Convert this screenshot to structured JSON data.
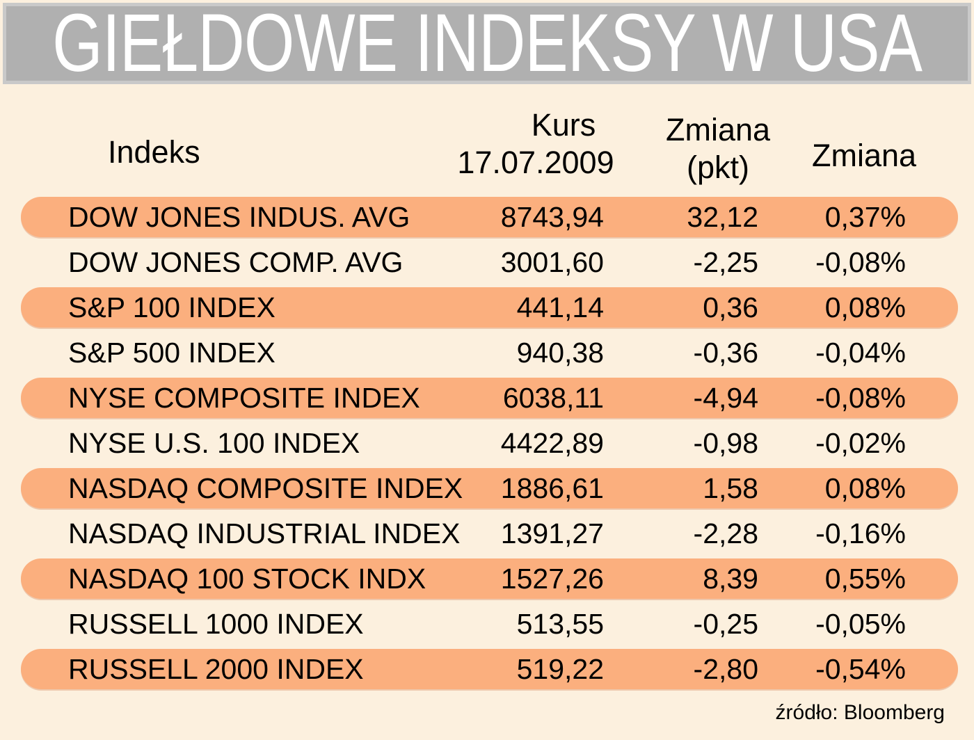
{
  "title": "GIEŁDOWE INDEKSY W USA",
  "source_note": "źródło: Bloomberg",
  "colors": {
    "background_cream": "#FCF0DE",
    "highlight_orange": "#FBAF7E",
    "title_bar_gray": "#B0B0B0",
    "title_bar_border_gray": "#C9C9C9",
    "title_text_white": "#FFFFFF",
    "body_text_black": "#000000"
  },
  "table": {
    "header": {
      "indeks": "Indeks",
      "kurs_line1": "Kurs",
      "kurs_line2": "17.07.2009",
      "zmiana_pkt_line1": "Zmiana",
      "zmiana_pkt_line2": "(pkt)",
      "zmiana_pct": "Zmiana"
    },
    "rows": [
      {
        "indeks": "DOW JONES INDUS. AVG",
        "kurs": "8743,94",
        "zmiana_pkt": "32,12",
        "zmiana_pct": "0,37%",
        "highlighted": true
      },
      {
        "indeks": "DOW JONES COMP. AVG",
        "kurs": "3001,60",
        "zmiana_pkt": "-2,25",
        "zmiana_pct": "-0,08%",
        "highlighted": false
      },
      {
        "indeks": "S&P 100 INDEX",
        "kurs": "441,14",
        "zmiana_pkt": "0,36",
        "zmiana_pct": "0,08%",
        "highlighted": true
      },
      {
        "indeks": "S&P 500 INDEX",
        "kurs": "940,38",
        "zmiana_pkt": "-0,36",
        "zmiana_pct": "-0,04%",
        "highlighted": false
      },
      {
        "indeks": "NYSE COMPOSITE INDEX",
        "kurs": "6038,11",
        "zmiana_pkt": "-4,94",
        "zmiana_pct": "-0,08%",
        "highlighted": true
      },
      {
        "indeks": "NYSE U.S. 100 INDEX",
        "kurs": "4422,89",
        "zmiana_pkt": "-0,98",
        "zmiana_pct": "-0,02%",
        "highlighted": false
      },
      {
        "indeks": "NASDAQ COMPOSITE INDEX",
        "kurs": "1886,61",
        "zmiana_pkt": "1,58",
        "zmiana_pct": "0,08%",
        "highlighted": true
      },
      {
        "indeks": "NASDAQ INDUSTRIAL INDEX",
        "kurs": "1391,27",
        "zmiana_pkt": "-2,28",
        "zmiana_pct": "-0,16%",
        "highlighted": false
      },
      {
        "indeks": "NASDAQ 100 STOCK INDX",
        "kurs": "1527,26",
        "zmiana_pkt": "8,39",
        "zmiana_pct": "0,55%",
        "highlighted": true
      },
      {
        "indeks": "RUSSELL 1000 INDEX",
        "kurs": "513,55",
        "zmiana_pkt": "-0,25",
        "zmiana_pct": "-0,05%",
        "highlighted": false
      },
      {
        "indeks": "RUSSELL 2000 INDEX",
        "kurs": "519,22",
        "zmiana_pkt": "-2,80",
        "zmiana_pct": "-0,54%",
        "highlighted": true
      }
    ]
  },
  "chart_data": {
    "type": "table",
    "title": "GIEŁDOWE INDEKSY W USA",
    "columns": [
      "Indeks",
      "Kurs 17.07.2009",
      "Zmiana (pkt)",
      "Zmiana"
    ],
    "rows": [
      [
        "DOW JONES INDUS. AVG",
        8743.94,
        32.12,
        "0,37%"
      ],
      [
        "DOW JONES COMP. AVG",
        3001.6,
        -2.25,
        "-0,08%"
      ],
      [
        "S&P 100 INDEX",
        441.14,
        0.36,
        "0,08%"
      ],
      [
        "S&P 500 INDEX",
        940.38,
        -0.36,
        "-0,04%"
      ],
      [
        "NYSE COMPOSITE INDEX",
        6038.11,
        -4.94,
        "-0,08%"
      ],
      [
        "NYSE U.S. 100 INDEX",
        4422.89,
        -0.98,
        "-0,02%"
      ],
      [
        "NASDAQ COMPOSITE INDEX",
        1886.61,
        1.58,
        "0,08%"
      ],
      [
        "NASDAQ INDUSTRIAL INDEX",
        1391.27,
        -2.28,
        "-0,16%"
      ],
      [
        "NASDAQ 100 STOCK INDX",
        1527.26,
        8.39,
        "0,55%"
      ],
      [
        "RUSSELL 1000 INDEX",
        513.55,
        -0.25,
        "-0,05%"
      ],
      [
        "RUSSELL 2000 INDEX",
        519.22,
        -2.8,
        "-0,54%"
      ]
    ],
    "change_pct_values": [
      0.37,
      -0.08,
      0.08,
      -0.04,
      -0.08,
      -0.02,
      0.08,
      -0.16,
      0.55,
      -0.05,
      -0.54
    ],
    "source": "źródło: Bloomberg"
  }
}
